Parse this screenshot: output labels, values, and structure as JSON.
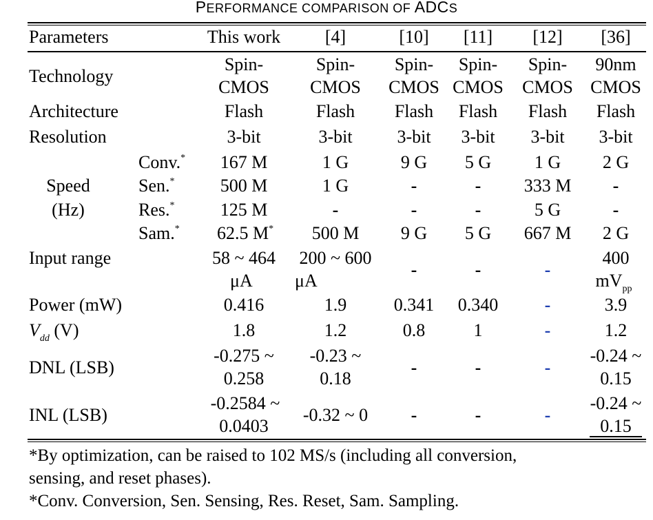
{
  "caption": {
    "p": "P",
    "erformance": "ERFORMANCE COMPARISON OF ",
    "adc": "ADC",
    "s": "S"
  },
  "header": [
    "Parameters",
    "This work",
    "[4]",
    "[10]",
    "[11]",
    "[12]",
    "[36]"
  ],
  "rows": {
    "technology": {
      "label": "Technology",
      "cells": [
        [
          "Spin-",
          "CMOS"
        ],
        [
          "Spin-",
          "CMOS"
        ],
        [
          "Spin-",
          "CMOS"
        ],
        [
          "Spin-",
          "CMOS"
        ],
        [
          "Spin-",
          "CMOS"
        ],
        [
          "90nm",
          "CMOS"
        ]
      ]
    },
    "architecture": {
      "label": "Architecture",
      "cells": [
        "Flash",
        "Flash",
        "Flash",
        "Flash",
        "Flash",
        "Flash"
      ]
    },
    "resolution": {
      "label": "Resolution",
      "cells": [
        "3-bit",
        "3-bit",
        "3-bit",
        "3-bit",
        "3-bit",
        "3-bit"
      ]
    },
    "speed": {
      "label1": "Speed",
      "label2": "(Hz)",
      "star": "*",
      "conv": {
        "label": "Conv.",
        "cells": [
          "167 M",
          "1 G",
          "9 G",
          "5 G",
          "1 G",
          "2 G"
        ]
      },
      "sen": {
        "label": "Sen.",
        "cells": [
          "500 M",
          "1 G",
          "-",
          "-",
          "333 M",
          "-"
        ]
      },
      "res": {
        "label": "Res.",
        "cells": [
          "125 M",
          "-",
          "-",
          "-",
          "5 G",
          "-"
        ]
      },
      "sam": {
        "label": "Sam.",
        "cells": [
          "62.5 M",
          "500 M",
          "9 G",
          "5 G",
          "667 M",
          "2 G"
        ]
      }
    },
    "input_range": {
      "label": "Input range",
      "c1a": "58 ~ 464",
      "c1b": "μA",
      "c2a": "200 ~ 600",
      "c2b": "μA",
      "c3": "-",
      "c4": "-",
      "c5": "-",
      "c6a": "400",
      "c6b": "mV",
      "c6sub": "pp"
    },
    "power": {
      "label": "Power (mW)",
      "cells": [
        "0.416",
        "1.9",
        "0.341",
        "0.340",
        "-",
        "3.9"
      ]
    },
    "vdd": {
      "label_v": "V",
      "label_sub": "dd",
      "label_unit": " (V)",
      "cells": [
        "1.8",
        "1.2",
        "0.8",
        "1",
        "-",
        "1.2"
      ]
    },
    "dnl": {
      "label": "DNL (LSB)",
      "c1a": "-0.275 ~",
      "c1b": "0.258",
      "c2a": "-0.23 ~",
      "c2b": "0.18",
      "c3": "-",
      "c4": "-",
      "c5": "-",
      "c6a": "-0.24 ~",
      "c6b": "0.15"
    },
    "inl": {
      "label": "INL (LSB)",
      "c1a": "-0.2584 ~",
      "c1b": "0.0403",
      "c2": "-0.32 ~ 0",
      "c3": "-",
      "c4": "-",
      "c5": "-",
      "c6a": "-0.24 ~",
      "c6b": "0.15"
    }
  },
  "footnotes": {
    "line1": "*By optimization, can be raised to 102 MS/s (including all conversion,",
    "line2": "sensing, and reset phases).",
    "line3": "*Conv. Conversion, Sen. Sensing, Res.  Reset, Sam. Sampling."
  },
  "colors": {
    "text": "#000000",
    "blue_dash": "#1f3fb0"
  }
}
